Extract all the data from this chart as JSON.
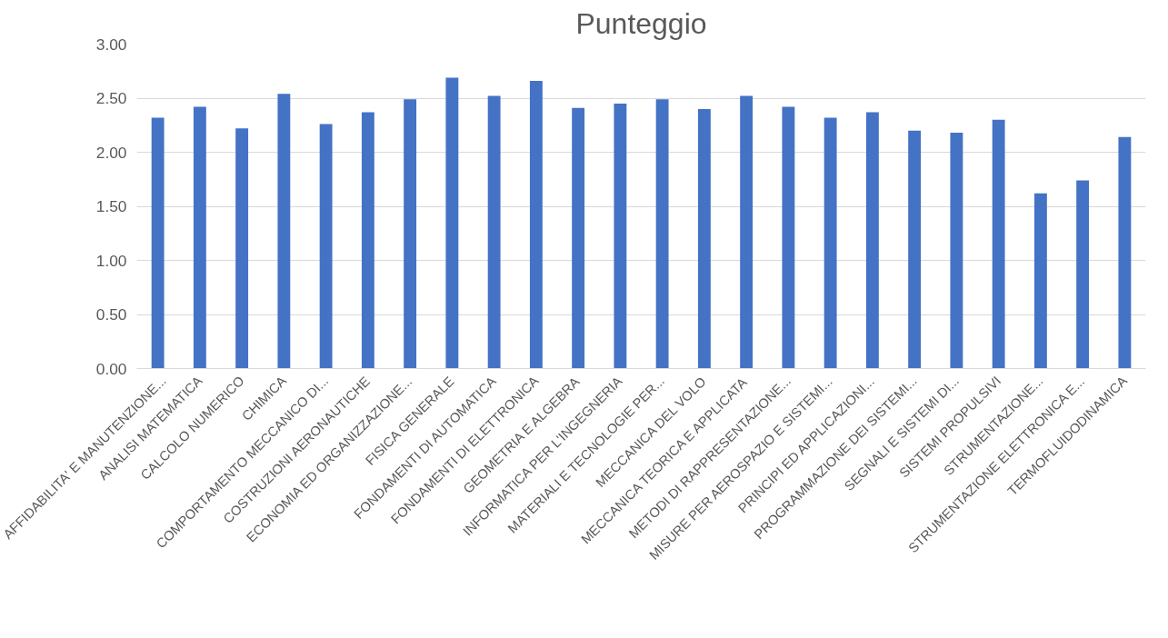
{
  "chart_data": {
    "type": "bar",
    "title": "Punteggio",
    "categories": [
      "AFFIDABILITA' E MANUTENZIONE...",
      "ANALISI MATEMATICA",
      "CALCOLO NUMERICO",
      "CHIMICA",
      "COMPORTAMENTO MECCANICO DI...",
      "COSTRUZIONI AERONAUTICHE",
      "ECONOMIA ED ORGANIZZAZIONE...",
      "FISICA GENERALE",
      "FONDAMENTI DI AUTOMATICA",
      "FONDAMENTI DI ELETTRONICA",
      "GEOMETRIA E ALGEBRA",
      "INFORMATICA PER L'INGEGNERIA",
      "MATERIALI E TECNOLOGIE PER...",
      "MECCANICA DEL VOLO",
      "MECCANICA TEORICA E APPLICATA",
      "METODI DI RAPPRESENTAZIONE...",
      "MISURE PER AEROSPAZIO E SISTEMI...",
      "PRINCIPI ED APPLICAZIONI...",
      "PROGRAMMAZIONE DEI SISTEMI...",
      "SEGNALI E SISTEMI DI...",
      "SISTEMI PROPULSIVI",
      "STRUMENTAZIONE...",
      "STRUMENTAZIONE ELETTRONICA E...",
      "TERMOFLUIDODINAMICA"
    ],
    "values": [
      2.32,
      2.42,
      2.22,
      2.54,
      2.26,
      2.37,
      2.49,
      2.69,
      2.52,
      2.66,
      2.41,
      2.45,
      2.49,
      2.4,
      2.52,
      2.42,
      2.32,
      2.37,
      2.2,
      2.18,
      2.3,
      1.62,
      1.74,
      2.14
    ],
    "color": "#4472c4",
    "ylim": [
      0,
      3
    ],
    "yticks": [
      {
        "value": 0,
        "label": "0.00"
      },
      {
        "value": 0.5,
        "label": "0.50"
      },
      {
        "value": 1,
        "label": "1.00"
      },
      {
        "value": 1.5,
        "label": "1.50"
      },
      {
        "value": 2,
        "label": "2.00"
      },
      {
        "value": 2.5,
        "label": "2.50"
      },
      {
        "value": 3,
        "label": "3.00"
      }
    ],
    "grid": "y"
  }
}
